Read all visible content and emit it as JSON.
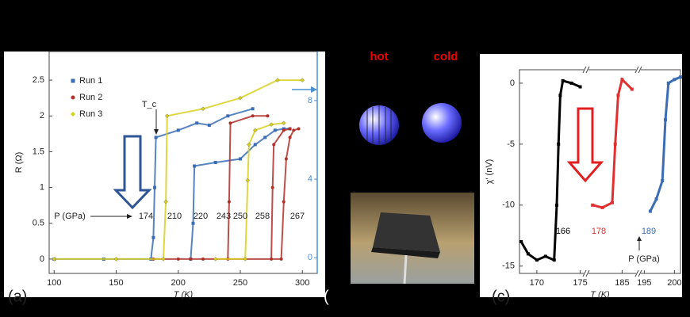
{
  "chart_data": [
    {
      "type": "line",
      "xlabel": "T (K)",
      "ylabel": "R (Ω)",
      "panel": "(a)",
      "xlim": [
        96,
        312
      ],
      "xticks": [
        100,
        150,
        200,
        250,
        300
      ],
      "ylim": [
        -0.2,
        2.9
      ],
      "yticks": [
        0,
        0.5,
        1.0,
        1.5,
        2.0,
        2.5
      ],
      "y2lim": [
        -0.8,
        10.5
      ],
      "y2ticks": [
        0,
        4,
        8
      ],
      "legend": "upper left",
      "annotations": [
        "T_c",
        "P (GPa)",
        "174",
        "210",
        "220",
        "243",
        "250",
        "258",
        "267"
      ],
      "series": [
        {
          "name": "Run 1",
          "color": "#3a6db5",
          "marker": "square",
          "x": [
            100,
            140,
            178,
            180,
            181,
            182,
            200,
            215,
            225,
            240,
            260,
            null,
            210,
            212,
            213,
            230,
            250,
            262,
            270,
            278,
            285,
            290
          ],
          "values": [
            0,
            0,
            0,
            0.3,
            1.0,
            1.7,
            1.8,
            1.9,
            1.87,
            2.0,
            2.1,
            null,
            0,
            0.5,
            1.3,
            1.35,
            1.4,
            1.6,
            1.7,
            1.8,
            1.82,
            1.82
          ]
        },
        {
          "name": "Run 2",
          "color": "#b0302a",
          "marker": "circle",
          "x": [
            180,
            210,
            240,
            241,
            242,
            260,
            272,
            null,
            200,
            275,
            276,
            277,
            285,
            290,
            null,
            220,
            283,
            285,
            287,
            290,
            293,
            297
          ],
          "values": [
            0,
            0,
            0,
            0.8,
            1.9,
            2.0,
            2.0,
            null,
            0,
            0,
            1.0,
            1.6,
            1.8,
            1.82,
            null,
            0,
            0,
            0.8,
            1.4,
            1.7,
            1.8,
            1.82
          ]
        },
        {
          "name": "Run 3",
          "color": "#d8d020",
          "marker": "diamond",
          "x": [
            100,
            150,
            188,
            190,
            191,
            220,
            250,
            280,
            300,
            null,
            230,
            254,
            256,
            257,
            262,
            275,
            285
          ],
          "values": [
            0,
            0,
            0,
            0.8,
            2.0,
            2.1,
            2.25,
            2.5,
            2.5,
            null,
            0,
            0,
            1.1,
            1.6,
            1.8,
            1.88,
            1.9
          ]
        }
      ]
    },
    {
      "type": "scatter",
      "xlabel": "T (K)",
      "ylabel": "χ′ (nV)",
      "panel": "(c)",
      "xlim": [
        [
          168,
          175.5
        ],
        [
          181.5,
          186.5
        ],
        [
          194.3,
          201
        ]
      ],
      "xticks": [
        170,
        175,
        185,
        195,
        200
      ],
      "ylim": [
        -15.6,
        1.1
      ],
      "yticks": [
        0,
        -5,
        -10,
        -15
      ],
      "annotations": [
        "166",
        "178",
        "189",
        "P (GPa)"
      ],
      "series": [
        {
          "name": "166",
          "color": "#000000",
          "x": [
            168.2,
            169,
            170,
            171,
            172,
            172.3,
            172.5,
            172.7,
            173,
            174,
            175
          ],
          "values": [
            -13,
            -14,
            -14.5,
            -14.2,
            -14.5,
            -10,
            -5,
            -1,
            0.2,
            0,
            -0.3
          ]
        },
        {
          "name": "178",
          "color": "#e03030",
          "x": [
            182,
            183,
            184,
            184.3,
            184.6,
            185,
            186
          ],
          "values": [
            -10,
            -10.2,
            -9.8,
            -5,
            -1,
            0.3,
            -0.5
          ]
        },
        {
          "name": "189",
          "color": "#3a6db5",
          "x": [
            196,
            197,
            198,
            198.5,
            199,
            200,
            201
          ],
          "values": [
            -10.5,
            -9.5,
            -8,
            -3,
            0,
            0.3,
            0.5
          ]
        }
      ]
    }
  ],
  "middle": {
    "hot": "hot",
    "cold": "cold",
    "stray": "("
  }
}
